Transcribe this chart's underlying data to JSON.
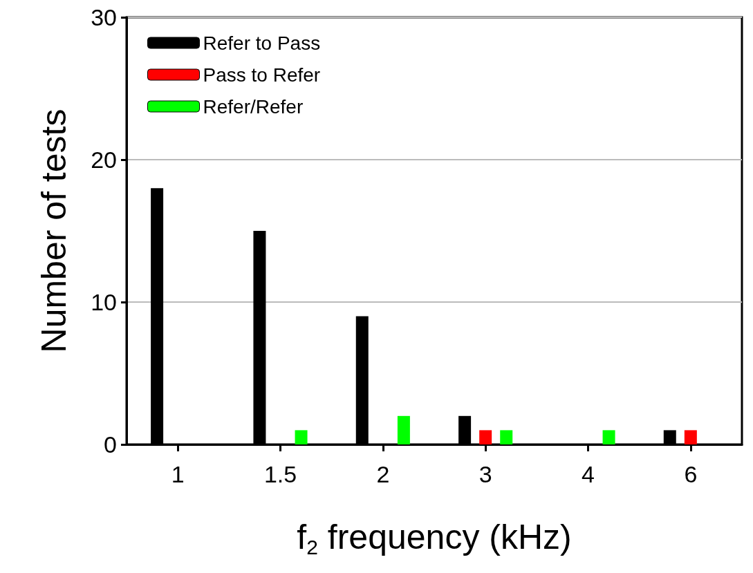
{
  "chart_data": {
    "type": "bar",
    "xlabel": "f$_{2}$ frequency (kHz)",
    "ylabel": "Number of tests",
    "categories": [
      "1",
      "1.5",
      "2",
      "3",
      "4",
      "6"
    ],
    "series": [
      {
        "name": "Refer to Pass",
        "color": "#000000",
        "values": [
          18,
          15,
          9,
          2,
          0,
          1
        ]
      },
      {
        "name": "Pass to Refer",
        "color": "#ff0000",
        "values": [
          0,
          0,
          0,
          1,
          0,
          1
        ]
      },
      {
        "name": "Refer/Refer",
        "color": "#00ff00",
        "values": [
          0,
          1,
          2,
          1,
          1,
          0
        ]
      }
    ],
    "ylim": [
      0,
      30
    ],
    "yticks": [
      0,
      10,
      20,
      30
    ],
    "grid": "y",
    "legend": "top left"
  }
}
